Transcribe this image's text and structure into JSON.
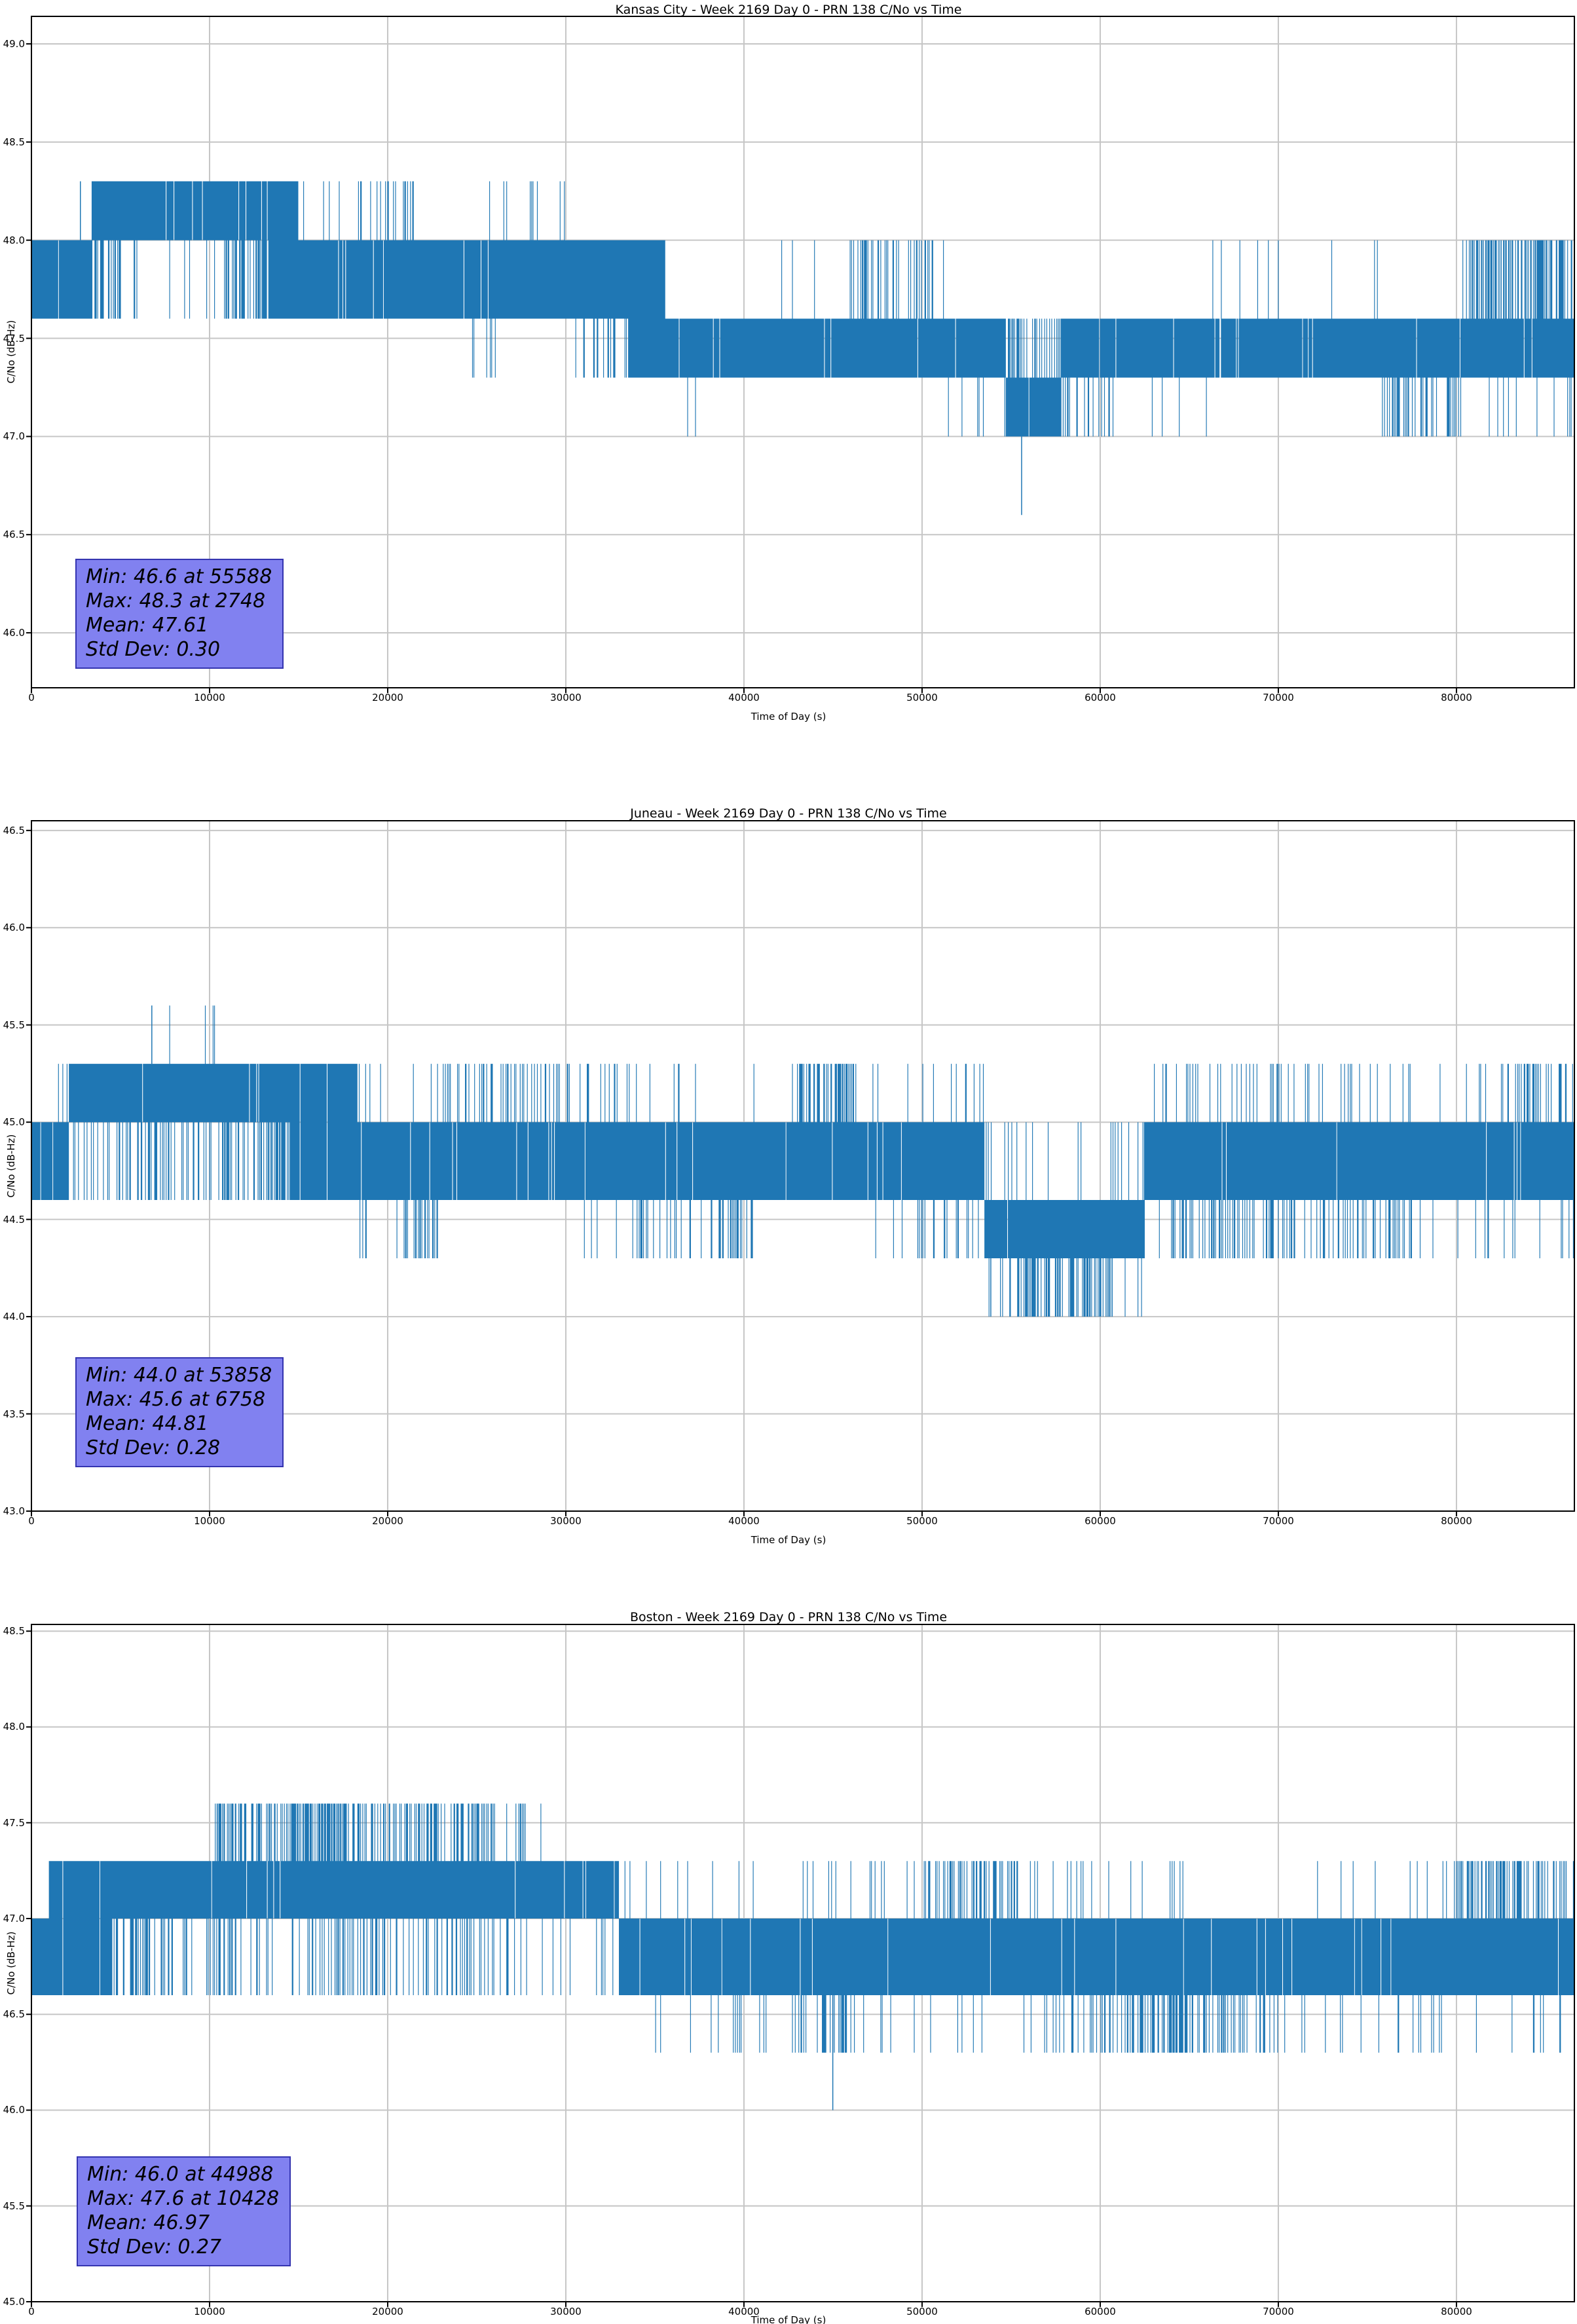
{
  "colors": {
    "series_line": "#1f77b4",
    "grid": "#c6c6c6",
    "spine": "#000000",
    "stats_bg": "#8181f0",
    "stats_border": "#3434b0",
    "text": "#000000",
    "background": "#ffffff"
  },
  "chart_data": [
    {
      "type": "line",
      "title": "Kansas City - Week 2169 Day 0 - PRN 138 C/No vs Time",
      "xlabel": "Time of Day (s)",
      "ylabel": "C/No (dB-Hz)",
      "xlim": [
        0,
        86620
      ],
      "ylim": [
        45.72,
        49.14
      ],
      "xticks": [
        0,
        10000,
        20000,
        30000,
        40000,
        50000,
        60000,
        70000,
        80000
      ],
      "yticks": [
        46.0,
        46.5,
        47.0,
        47.5,
        48.0,
        48.5,
        49.0
      ],
      "grid": true,
      "stats": {
        "min": 46.6,
        "min_time": 55588,
        "max": 48.3,
        "max_time": 2748,
        "mean": 47.61,
        "std_dev": 0.3
      },
      "stats_lines": [
        "Min: 46.6 at 55588",
        "Max: 48.3 at 2748",
        "Mean: 47.61",
        "Std Dev: 0.30"
      ],
      "quantization_step": 0.3333,
      "segments": [
        {
          "t0": 0,
          "t1": 3400,
          "lo": 47.6,
          "hi": 48.0
        },
        {
          "t0": 3400,
          "t1": 5100,
          "lo": 48.0,
          "hi": 48.3,
          "dn": [
            47.6,
            0.45
          ]
        },
        {
          "t0": 5100,
          "t1": 10800,
          "lo": 48.0,
          "hi": 48.3,
          "dn": [
            47.6,
            0.05
          ]
        },
        {
          "t0": 10800,
          "t1": 13300,
          "lo": 48.0,
          "hi": 48.3,
          "dn": [
            47.6,
            0.5
          ]
        },
        {
          "t0": 13300,
          "t1": 15000,
          "lo": 47.6,
          "hi": 48.3
        },
        {
          "t0": 15000,
          "t1": 18300,
          "lo": 47.6,
          "hi": 48.0,
          "up": [
            48.3,
            0.03
          ]
        },
        {
          "t0": 18300,
          "t1": 21600,
          "lo": 47.6,
          "hi": 48.0,
          "up": [
            48.3,
            0.25
          ]
        },
        {
          "t0": 21600,
          "t1": 24500,
          "lo": 47.6,
          "hi": 48.0
        },
        {
          "t0": 24500,
          "t1": 26200,
          "lo": 47.6,
          "hi": 48.0,
          "dn": [
            47.3,
            0.08
          ],
          "up": [
            48.3,
            0.05
          ]
        },
        {
          "t0": 26200,
          "t1": 30500,
          "lo": 47.6,
          "hi": 48.0,
          "up": [
            48.3,
            0.1
          ]
        },
        {
          "t0": 30500,
          "t1": 33500,
          "lo": 47.6,
          "hi": 48.0,
          "dn": [
            47.3,
            0.15
          ]
        },
        {
          "t0": 33500,
          "t1": 35600,
          "lo": 47.3,
          "hi": 48.0
        },
        {
          "t0": 35600,
          "t1": 42500,
          "lo": 47.3,
          "hi": 47.6,
          "up": [
            48.0,
            0.05
          ],
          "dn": [
            47.0,
            0.02
          ]
        },
        {
          "t0": 42500,
          "t1": 45900,
          "lo": 47.3,
          "hi": 47.6,
          "up": [
            48.0,
            0.05
          ]
        },
        {
          "t0": 45900,
          "t1": 51300,
          "lo": 47.3,
          "hi": 47.6,
          "up": [
            48.0,
            0.3
          ]
        },
        {
          "t0": 51300,
          "t1": 54700,
          "lo": 47.3,
          "hi": 47.6,
          "dn": [
            47.0,
            0.05
          ]
        },
        {
          "t0": 54700,
          "t1": 57800,
          "lo": 47.0,
          "hi": 47.3,
          "up": [
            47.6,
            0.35
          ]
        },
        {
          "t0": 57800,
          "t1": 60800,
          "lo": 47.3,
          "hi": 47.6,
          "dn": [
            47.0,
            0.3
          ]
        },
        {
          "t0": 60800,
          "t1": 66000,
          "lo": 47.3,
          "hi": 47.6,
          "dn": [
            47.0,
            0.04
          ]
        },
        {
          "t0": 66000,
          "t1": 70500,
          "lo": 47.3,
          "hi": 47.6,
          "up": [
            48.0,
            0.05
          ]
        },
        {
          "t0": 70500,
          "t1": 75800,
          "lo": 47.3,
          "hi": 47.6,
          "up": [
            48.0,
            0.03
          ]
        },
        {
          "t0": 75800,
          "t1": 80300,
          "lo": 47.3,
          "hi": 47.6,
          "dn": [
            47.0,
            0.3
          ]
        },
        {
          "t0": 80300,
          "t1": 86620,
          "lo": 47.3,
          "hi": 47.6,
          "up": [
            48.0,
            0.5
          ],
          "dn": [
            47.0,
            0.06
          ]
        }
      ],
      "extremes": [
        {
          "t": 2748,
          "y0": 48.0,
          "y1": 48.3
        },
        {
          "t": 55588,
          "y0": 47.0,
          "y1": 46.6
        }
      ]
    },
    {
      "type": "line",
      "title": "Juneau - Week 2169 Day 0 - PRN 138 C/No vs Time",
      "xlabel": "Time of Day (s)",
      "ylabel": "C/No (dB-Hz)",
      "xlim": [
        0,
        86620
      ],
      "ylim": [
        43.0,
        46.55
      ],
      "xticks": [
        0,
        10000,
        20000,
        30000,
        40000,
        50000,
        60000,
        70000,
        80000
      ],
      "yticks": [
        43.0,
        43.5,
        44.0,
        44.5,
        45.0,
        45.5,
        46.0,
        46.5
      ],
      "grid": true,
      "stats": {
        "min": 44.0,
        "min_time": 53858,
        "max": 45.6,
        "max_time": 6758,
        "mean": 44.81,
        "std_dev": 0.28
      },
      "stats_lines": [
        "Min: 44.0 at 53858",
        "Max: 45.6 at 6758",
        "Mean: 44.81",
        "Std Dev: 0.28"
      ],
      "quantization_step": 0.3333,
      "segments": [
        {
          "t0": 0,
          "t1": 1200,
          "lo": 44.6,
          "hi": 45.0
        },
        {
          "t0": 1200,
          "t1": 2100,
          "lo": 44.6,
          "hi": 45.0,
          "up": [
            45.3,
            0.3
          ]
        },
        {
          "t0": 2100,
          "t1": 6500,
          "lo": 45.0,
          "hi": 45.3,
          "dn": [
            44.6,
            0.35
          ]
        },
        {
          "t0": 6500,
          "t1": 11000,
          "lo": 45.0,
          "hi": 45.3,
          "dn": [
            44.6,
            0.3
          ],
          "up": [
            45.6,
            0.06
          ]
        },
        {
          "t0": 11000,
          "t1": 14600,
          "lo": 45.0,
          "hi": 45.3,
          "dn": [
            44.6,
            0.45
          ]
        },
        {
          "t0": 14600,
          "t1": 16800,
          "lo": 44.6,
          "hi": 45.3,
          "up": [
            45.6,
            0.02
          ]
        },
        {
          "t0": 16800,
          "t1": 18300,
          "lo": 44.6,
          "hi": 45.3
        },
        {
          "t0": 18300,
          "t1": 19200,
          "lo": 44.6,
          "hi": 45.0,
          "dn": [
            44.3,
            0.25
          ],
          "up": [
            45.3,
            0.1
          ]
        },
        {
          "t0": 19200,
          "t1": 20500,
          "lo": 44.6,
          "hi": 45.0,
          "up": [
            45.3,
            0.08
          ]
        },
        {
          "t0": 20500,
          "t1": 23000,
          "lo": 44.6,
          "hi": 45.0,
          "dn": [
            44.3,
            0.3
          ],
          "up": [
            45.3,
            0.1
          ]
        },
        {
          "t0": 23000,
          "t1": 27000,
          "lo": 44.6,
          "hi": 45.0,
          "up": [
            45.3,
            0.2
          ]
        },
        {
          "t0": 27000,
          "t1": 31000,
          "lo": 44.6,
          "hi": 45.0,
          "up": [
            45.3,
            0.25
          ],
          "dn": [
            44.3,
            0.03
          ]
        },
        {
          "t0": 31000,
          "t1": 34000,
          "lo": 44.6,
          "hi": 45.0,
          "up": [
            45.3,
            0.15
          ],
          "dn": [
            44.3,
            0.05
          ]
        },
        {
          "t0": 34000,
          "t1": 38500,
          "lo": 44.6,
          "hi": 45.0,
          "dn": [
            44.3,
            0.2
          ],
          "up": [
            45.3,
            0.05
          ]
        },
        {
          "t0": 38500,
          "t1": 40500,
          "lo": 44.6,
          "hi": 45.0,
          "dn": [
            44.3,
            0.45
          ]
        },
        {
          "t0": 40500,
          "t1": 43000,
          "lo": 44.6,
          "hi": 45.0,
          "up": [
            45.3,
            0.05
          ]
        },
        {
          "t0": 43000,
          "t1": 46300,
          "lo": 44.6,
          "hi": 45.0,
          "up": [
            45.3,
            0.5
          ]
        },
        {
          "t0": 46300,
          "t1": 49500,
          "lo": 44.6,
          "hi": 45.0,
          "dn": [
            44.3,
            0.04
          ],
          "up": [
            45.3,
            0.05
          ]
        },
        {
          "t0": 49500,
          "t1": 53500,
          "lo": 44.6,
          "hi": 45.0,
          "up": [
            45.3,
            0.08
          ],
          "dn": [
            44.3,
            0.2
          ]
        },
        {
          "t0": 53500,
          "t1": 55500,
          "lo": 44.3,
          "hi": 44.6,
          "dn": [
            44.0,
            0.2
          ],
          "up": [
            45.0,
            0.15
          ]
        },
        {
          "t0": 55500,
          "t1": 60500,
          "lo": 44.3,
          "hi": 44.6,
          "dn": [
            44.0,
            0.5
          ],
          "up": [
            45.0,
            0.05
          ]
        },
        {
          "t0": 60500,
          "t1": 62500,
          "lo": 44.3,
          "hi": 44.6,
          "dn": [
            44.0,
            0.15
          ],
          "up": [
            45.0,
            0.25
          ]
        },
        {
          "t0": 62500,
          "t1": 64500,
          "lo": 44.6,
          "hi": 45.0,
          "up": [
            45.3,
            0.05
          ],
          "dn": [
            44.3,
            0.05
          ]
        },
        {
          "t0": 64500,
          "t1": 68500,
          "lo": 44.6,
          "hi": 45.0,
          "dn": [
            44.3,
            0.3
          ],
          "up": [
            45.3,
            0.15
          ]
        },
        {
          "t0": 68500,
          "t1": 72500,
          "lo": 44.6,
          "hi": 45.0,
          "up": [
            45.3,
            0.2
          ],
          "dn": [
            44.3,
            0.2
          ]
        },
        {
          "t0": 72500,
          "t1": 77500,
          "lo": 44.6,
          "hi": 45.0,
          "dn": [
            44.3,
            0.3
          ],
          "up": [
            45.3,
            0.08
          ]
        },
        {
          "t0": 77500,
          "t1": 82500,
          "lo": 44.6,
          "hi": 45.0,
          "up": [
            45.3,
            0.05
          ],
          "dn": [
            44.3,
            0.05
          ]
        },
        {
          "t0": 82500,
          "t1": 86620,
          "lo": 44.6,
          "hi": 45.0,
          "up": [
            45.3,
            0.3
          ],
          "dn": [
            44.3,
            0.08
          ]
        }
      ],
      "extremes": [
        {
          "t": 6758,
          "y0": 45.3,
          "y1": 45.6
        },
        {
          "t": 53858,
          "y0": 44.3,
          "y1": 44.0
        }
      ]
    },
    {
      "type": "line",
      "title": "Boston - Week 2169 Day 0 - PRN 138 C/No vs Time",
      "xlabel": "Time of Day (s)",
      "ylabel": "C/No (dB-Hz)",
      "xlim": [
        0,
        86620
      ],
      "ylim": [
        45.0,
        48.535
      ],
      "xticks": [
        0,
        10000,
        20000,
        30000,
        40000,
        50000,
        60000,
        70000,
        80000
      ],
      "yticks": [
        45.0,
        45.5,
        46.0,
        46.5,
        47.0,
        47.5,
        48.0,
        48.5
      ],
      "grid": true,
      "stats": {
        "min": 46.0,
        "min_time": 44988,
        "max": 47.6,
        "max_time": 10428,
        "mean": 46.97,
        "std_dev": 0.27
      },
      "stats_lines": [
        "Min: 46.0 at 44988",
        "Max: 47.6 at 10428",
        "Mean: 46.97",
        "Std Dev: 0.27"
      ],
      "quantization_step": 0.3333,
      "segments": [
        {
          "t0": 0,
          "t1": 1000,
          "lo": 46.6,
          "hi": 47.0
        },
        {
          "t0": 1000,
          "t1": 4500,
          "lo": 46.6,
          "hi": 47.3
        },
        {
          "t0": 4500,
          "t1": 10300,
          "lo": 47.0,
          "hi": 47.3,
          "dn": [
            46.6,
            0.3
          ]
        },
        {
          "t0": 10300,
          "t1": 14000,
          "lo": 47.0,
          "hi": 47.3,
          "up": [
            47.6,
            0.4
          ],
          "dn": [
            46.6,
            0.2
          ]
        },
        {
          "t0": 14000,
          "t1": 18500,
          "lo": 47.0,
          "hi": 47.3,
          "up": [
            47.6,
            0.55
          ],
          "dn": [
            46.6,
            0.25
          ]
        },
        {
          "t0": 18500,
          "t1": 20000,
          "lo": 47.0,
          "hi": 47.3,
          "up": [
            47.6,
            0.25
          ],
          "dn": [
            46.6,
            0.3
          ]
        },
        {
          "t0": 20000,
          "t1": 26000,
          "lo": 47.0,
          "hi": 47.3,
          "up": [
            47.6,
            0.45
          ],
          "dn": [
            46.6,
            0.2
          ]
        },
        {
          "t0": 26000,
          "t1": 29000,
          "lo": 47.0,
          "hi": 47.3,
          "up": [
            47.6,
            0.12
          ],
          "dn": [
            46.6,
            0.1
          ]
        },
        {
          "t0": 29000,
          "t1": 33000,
          "lo": 47.0,
          "hi": 47.3,
          "dn": [
            46.6,
            0.05
          ]
        },
        {
          "t0": 33000,
          "t1": 38000,
          "lo": 46.6,
          "hi": 47.0,
          "dn": [
            46.3,
            0.03
          ],
          "up": [
            47.3,
            0.05
          ]
        },
        {
          "t0": 38000,
          "t1": 44000,
          "lo": 46.6,
          "hi": 47.0,
          "dn": [
            46.3,
            0.08
          ],
          "up": [
            47.3,
            0.06
          ]
        },
        {
          "t0": 44000,
          "t1": 46500,
          "lo": 46.6,
          "hi": 47.0,
          "dn": [
            46.3,
            0.3
          ],
          "up": [
            47.3,
            0.08
          ]
        },
        {
          "t0": 46500,
          "t1": 50000,
          "lo": 46.6,
          "hi": 47.0,
          "up": [
            47.3,
            0.1
          ],
          "dn": [
            46.3,
            0.05
          ]
        },
        {
          "t0": 50000,
          "t1": 55500,
          "lo": 46.6,
          "hi": 47.0,
          "up": [
            47.3,
            0.3
          ],
          "dn": [
            46.3,
            0.05
          ]
        },
        {
          "t0": 55500,
          "t1": 60000,
          "lo": 46.6,
          "hi": 47.0,
          "dn": [
            46.3,
            0.2
          ],
          "up": [
            47.3,
            0.1
          ]
        },
        {
          "t0": 60000,
          "t1": 65000,
          "lo": 46.6,
          "hi": 47.0,
          "dn": [
            46.3,
            0.45
          ],
          "up": [
            47.3,
            0.05
          ]
        },
        {
          "t0": 65000,
          "t1": 70000,
          "lo": 46.6,
          "hi": 47.0,
          "dn": [
            46.3,
            0.3
          ]
        },
        {
          "t0": 70000,
          "t1": 80000,
          "lo": 46.6,
          "hi": 47.0,
          "dn": [
            46.3,
            0.06
          ],
          "up": [
            47.3,
            0.05
          ]
        },
        {
          "t0": 80000,
          "t1": 84000,
          "lo": 46.6,
          "hi": 47.0,
          "up": [
            47.3,
            0.45
          ],
          "dn": [
            46.3,
            0.05
          ]
        },
        {
          "t0": 84000,
          "t1": 86620,
          "lo": 46.6,
          "hi": 47.0,
          "up": [
            47.3,
            0.25
          ],
          "dn": [
            46.3,
            0.1
          ]
        }
      ],
      "extremes": [
        {
          "t": 10428,
          "y0": 47.3,
          "y1": 47.6
        },
        {
          "t": 44988,
          "y0": 46.6,
          "y1": 46.0
        }
      ]
    }
  ]
}
